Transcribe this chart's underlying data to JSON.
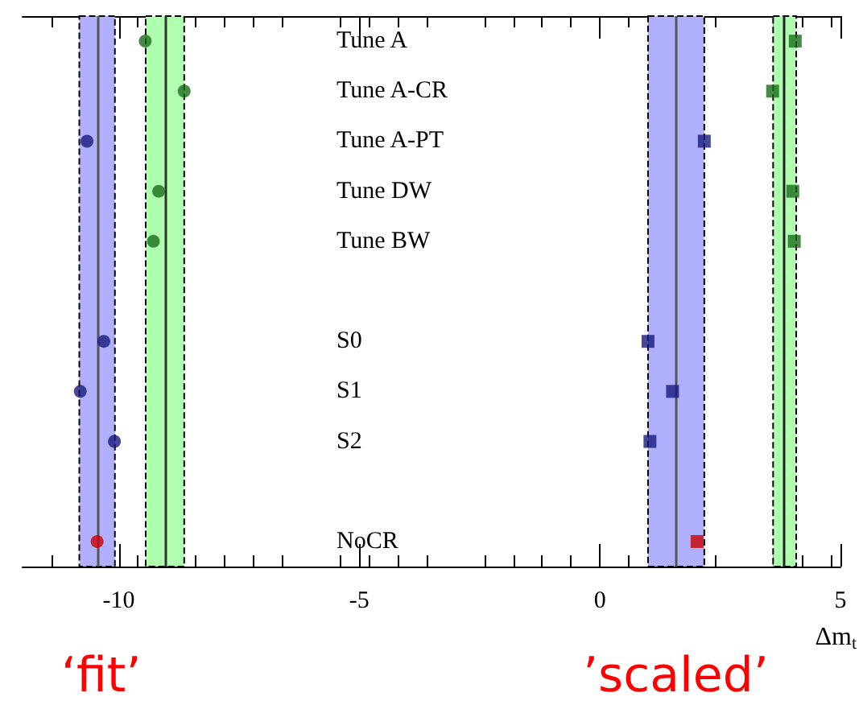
{
  "chart_data": {
    "type": "scatter",
    "orientation": "horizontal",
    "xlabel": "Δm$_{t}$",
    "categories": [
      "Tune A",
      "Tune A-CR",
      "Tune A-PT",
      "Tune DW",
      "Tune BW",
      null,
      "S0",
      "S1",
      "S2",
      null,
      "NoCR"
    ],
    "series": [
      {
        "color": "#1a6b1a",
        "marker": "circle",
        "values": [
          -9.45,
          -8.64,
          null,
          -9.17,
          -9.28,
          null,
          null,
          null,
          null,
          null,
          null
        ]
      },
      {
        "color": "#1a1a80",
        "marker": "circle",
        "values": [
          null,
          null,
          -10.66,
          null,
          null,
          null,
          -10.31,
          -10.8,
          -10.09,
          null,
          null
        ]
      },
      {
        "color": "#cc0000",
        "marker": "circle",
        "values": [
          null,
          null,
          null,
          null,
          null,
          null,
          null,
          null,
          null,
          null,
          -10.45
        ]
      },
      {
        "color": "#1a6b1a",
        "marker": "square",
        "values": [
          4.06,
          3.59,
          null,
          4.01,
          4.04,
          null,
          null,
          null,
          null,
          null,
          null
        ]
      },
      {
        "color": "#1a1a80",
        "marker": "square",
        "values": [
          null,
          null,
          2.17,
          null,
          null,
          null,
          1.0,
          1.51,
          1.04,
          null,
          null
        ]
      },
      {
        "color": "#cc0000",
        "marker": "square",
        "values": [
          null,
          null,
          null,
          null,
          null,
          null,
          null,
          null,
          null,
          null,
          2.02
        ]
      }
    ],
    "xlim": [
      -12,
      5
    ],
    "xticks": [
      -10,
      -5,
      0,
      5
    ],
    "grid": false,
    "bands": [
      {
        "axis": "x",
        "from": -10.82,
        "to": -10.08,
        "color": "#b0b0ff"
      },
      {
        "axis": "x",
        "from": -9.44,
        "to": -8.64,
        "color": "#b0ffb0"
      },
      {
        "axis": "x",
        "from": 1.0,
        "to": 2.17,
        "color": "#b0b0ff"
      },
      {
        "axis": "x",
        "from": 3.6,
        "to": 4.08,
        "color": "#b0ffb0"
      }
    ],
    "ref_lines": [
      {
        "axis": "x",
        "value": -10.44,
        "color": "#555555",
        "line_style": "solid"
      },
      {
        "axis": "x",
        "value": -9.03,
        "color": "#333333",
        "line_style": "solid"
      },
      {
        "axis": "x",
        "value": 1.58,
        "color": "#555555",
        "line_style": "solid"
      },
      {
        "axis": "x",
        "value": 3.83,
        "color": "#222222",
        "line_style": "solid"
      }
    ],
    "annotations": [
      "‘fit’",
      "’scaled’"
    ]
  }
}
